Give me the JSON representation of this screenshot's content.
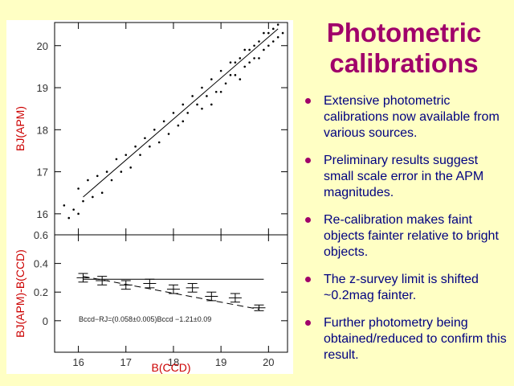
{
  "slide": {
    "title": "Photometric calibrations",
    "bullets": [
      "Extensive photometric calibrations now available from various sources.",
      "Preliminary results suggest small scale error in the APM magnitudes.",
      "Re-calibration makes faint objects fainter relative to bright objects.",
      "The z-survey limit is shifted ~0.2mag fainter.",
      "Further photometry being obtained/reduced to confirm this result."
    ]
  },
  "chart_data": [
    {
      "type": "scatter",
      "ylabel": "BJ(APM)",
      "color": "#000000",
      "xlim": [
        15.5,
        20.4
      ],
      "xticks": [
        16,
        17,
        18,
        19,
        20
      ],
      "ylim": [
        15.5,
        20.55
      ],
      "yticks": [
        16,
        17,
        18,
        19,
        20
      ],
      "points": {
        "x": [
          15.7,
          15.8,
          15.9,
          16.0,
          16.0,
          16.1,
          16.2,
          16.3,
          16.4,
          16.5,
          16.6,
          16.7,
          16.8,
          16.9,
          17.0,
          17.1,
          17.2,
          17.3,
          17.4,
          17.5,
          17.6,
          17.7,
          17.8,
          17.9,
          18.0,
          18.1,
          18.2,
          18.3,
          18.4,
          18.5,
          18.6,
          18.7,
          18.8,
          18.9,
          19.0,
          19.1,
          19.2,
          19.3,
          19.4,
          19.5,
          19.6,
          19.7,
          19.8,
          19.9,
          20.0,
          20.1,
          20.2,
          20.3,
          18.2,
          18.6,
          19.0,
          19.2,
          19.4,
          19.6,
          19.8,
          20.0,
          20.2,
          19.5,
          19.7,
          19.9,
          20.1,
          18.8,
          19.3
        ],
        "values": [
          16.2,
          15.9,
          16.1,
          16.6,
          16.0,
          16.3,
          16.8,
          16.4,
          16.9,
          16.5,
          17.0,
          16.8,
          17.3,
          17.0,
          17.4,
          17.1,
          17.6,
          17.4,
          17.8,
          17.6,
          18.0,
          17.7,
          18.2,
          17.9,
          18.4,
          18.1,
          18.6,
          18.4,
          18.8,
          18.6,
          19.0,
          18.8,
          19.2,
          18.9,
          19.4,
          19.1,
          19.6,
          19.3,
          19.7,
          19.5,
          19.9,
          19.7,
          20.1,
          19.9,
          20.3,
          20.1,
          20.5,
          20.3,
          18.2,
          18.5,
          18.9,
          19.3,
          19.2,
          19.6,
          19.7,
          20.0,
          20.2,
          19.9,
          20.0,
          20.3,
          20.4,
          18.6,
          19.6
        ]
      },
      "fit_line": {
        "x": [
          16.1,
          20.2
        ],
        "values": [
          16.4,
          20.4
        ]
      }
    },
    {
      "type": "errorbar",
      "ylabel": "BJ(APM)-B(CCD)",
      "xlabel": "B(CCD)",
      "color": "#000000",
      "xlim": [
        15.5,
        20.4
      ],
      "xticks": [
        16,
        17,
        18,
        19,
        20
      ],
      "ylim": [
        -0.22,
        0.6
      ],
      "yticks": [
        0,
        0.2,
        0.4,
        0.6
      ],
      "x": [
        16.1,
        16.5,
        17.0,
        17.5,
        18.0,
        18.4,
        18.8,
        19.3,
        19.8
      ],
      "values": [
        0.3,
        0.28,
        0.25,
        0.26,
        0.22,
        0.23,
        0.17,
        0.16,
        0.09
      ],
      "errors": [
        0.03,
        0.03,
        0.03,
        0.03,
        0.03,
        0.03,
        0.03,
        0.03,
        0.02
      ],
      "reference_line": {
        "x": [
          16.1,
          19.9
        ],
        "values": [
          0.29,
          0.29
        ]
      },
      "fit_line": {
        "x": [
          16.1,
          19.8
        ],
        "values": [
          0.31,
          0.08
        ]
      },
      "annotation": "Bccd−RJ=(0.058±0.005)Bccd −1.21±0.09"
    }
  ]
}
